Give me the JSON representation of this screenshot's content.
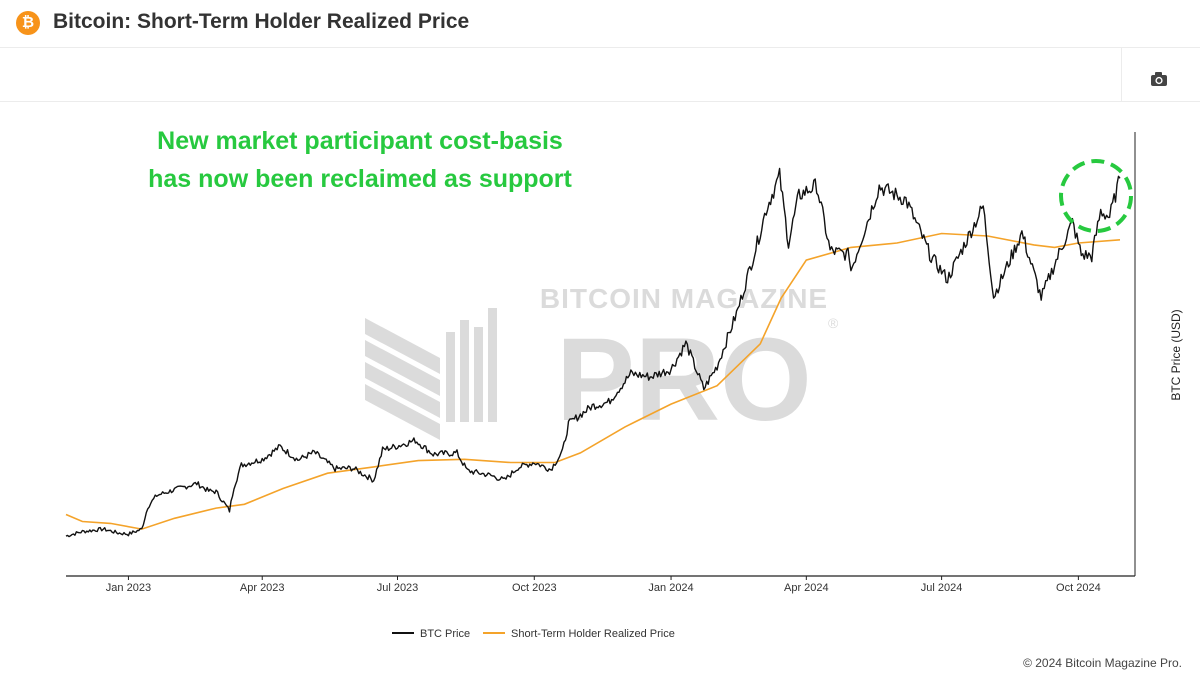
{
  "header": {
    "logo_glyph": "₿",
    "title": "Bitcoin: Short-Term Holder Realized Price"
  },
  "toolbar": {
    "camera_icon": "camera-icon"
  },
  "annotation": {
    "line1": "New market participant cost-basis",
    "line2": "has now been reclaimed as support",
    "color": "#27c93f"
  },
  "watermark": {
    "top": "BITCOIN MAGAZINE",
    "main": "PRO",
    "reg": "®"
  },
  "copyright": "© 2024 Bitcoin Magazine Pro.",
  "chart_data": {
    "type": "line",
    "title": "Bitcoin: Short-Term Holder Realized Price",
    "xlabel": "",
    "ylabel": "BTC Price (USD)",
    "x_ticks": [
      "Jan 2023",
      "Apr 2023",
      "Jul 2023",
      "Oct 2023",
      "Jan 2024",
      "Apr 2024",
      "Jul 2024",
      "Oct 2024"
    ],
    "x_range": [
      "2022-11-20",
      "2024-10-29"
    ],
    "ylim": [
      10000,
      80000
    ],
    "grid": false,
    "legend_position": "bottom",
    "series": [
      {
        "name": "BTC Price",
        "color": "#111111",
        "points": [
          [
            "2022-11-20",
            16300
          ],
          [
            "2022-12-01",
            17000
          ],
          [
            "2022-12-15",
            17400
          ],
          [
            "2022-12-25",
            16800
          ],
          [
            "2023-01-01",
            16600
          ],
          [
            "2023-01-10",
            17400
          ],
          [
            "2023-01-14",
            20900
          ],
          [
            "2023-01-20",
            22700
          ],
          [
            "2023-02-01",
            23600
          ],
          [
            "2023-02-16",
            24600
          ],
          [
            "2023-02-24",
            23400
          ],
          [
            "2023-03-01",
            23300
          ],
          [
            "2023-03-10",
            20300
          ],
          [
            "2023-03-13",
            24100
          ],
          [
            "2023-03-18",
            27500
          ],
          [
            "2023-04-01",
            28400
          ],
          [
            "2023-04-13",
            30400
          ],
          [
            "2023-04-25",
            28300
          ],
          [
            "2023-05-06",
            29500
          ],
          [
            "2023-05-20",
            26900
          ],
          [
            "2023-06-01",
            27000
          ],
          [
            "2023-06-15",
            25100
          ],
          [
            "2023-06-21",
            29900
          ],
          [
            "2023-07-01",
            30500
          ],
          [
            "2023-07-13",
            31400
          ],
          [
            "2023-07-25",
            29200
          ],
          [
            "2023-08-10",
            29400
          ],
          [
            "2023-08-17",
            26600
          ],
          [
            "2023-09-01",
            25900
          ],
          [
            "2023-09-11",
            25100
          ],
          [
            "2023-09-20",
            27100
          ],
          [
            "2023-10-01",
            27900
          ],
          [
            "2023-10-12",
            26800
          ],
          [
            "2023-10-20",
            29600
          ],
          [
            "2023-10-24",
            34000
          ],
          [
            "2023-11-09",
            36800
          ],
          [
            "2023-11-20",
            37400
          ],
          [
            "2023-12-05",
            41900
          ],
          [
            "2023-12-18",
            41400
          ],
          [
            "2024-01-01",
            42600
          ],
          [
            "2024-01-11",
            46700
          ],
          [
            "2024-01-23",
            39500
          ],
          [
            "2024-02-01",
            43100
          ],
          [
            "2024-02-15",
            52000
          ],
          [
            "2024-02-28",
            62500
          ],
          [
            "2024-03-05",
            67800
          ],
          [
            "2024-03-14",
            73100
          ],
          [
            "2024-03-20",
            62500
          ],
          [
            "2024-03-27",
            70000
          ],
          [
            "2024-04-08",
            71600
          ],
          [
            "2024-04-17",
            61300
          ],
          [
            "2024-04-30",
            60600
          ],
          [
            "2024-05-01",
            58200
          ],
          [
            "2024-05-20",
            71400
          ],
          [
            "2024-06-07",
            69300
          ],
          [
            "2024-06-24",
            60300
          ],
          [
            "2024-07-05",
            56800
          ],
          [
            "2024-07-29",
            68300
          ],
          [
            "2024-08-05",
            54000
          ],
          [
            "2024-08-24",
            64100
          ],
          [
            "2024-09-06",
            53900
          ],
          [
            "2024-09-17",
            60300
          ],
          [
            "2024-09-27",
            65800
          ],
          [
            "2024-10-03",
            60700
          ],
          [
            "2024-10-10",
            60400
          ],
          [
            "2024-10-16",
            67500
          ],
          [
            "2024-10-22",
            66600
          ],
          [
            "2024-10-29",
            72700
          ]
        ]
      },
      {
        "name": "Short-Term Holder Realized Price",
        "color": "#f4a32a",
        "points": [
          [
            "2022-11-20",
            19700
          ],
          [
            "2022-12-01",
            18600
          ],
          [
            "2022-12-20",
            18300
          ],
          [
            "2023-01-10",
            17400
          ],
          [
            "2023-02-01",
            19100
          ],
          [
            "2023-03-01",
            20700
          ],
          [
            "2023-03-20",
            21300
          ],
          [
            "2023-04-15",
            23800
          ],
          [
            "2023-05-15",
            26200
          ],
          [
            "2023-06-15",
            27200
          ],
          [
            "2023-07-15",
            28200
          ],
          [
            "2023-08-15",
            28400
          ],
          [
            "2023-09-15",
            27900
          ],
          [
            "2023-10-15",
            27900
          ],
          [
            "2023-11-01",
            29400
          ],
          [
            "2023-12-01",
            33500
          ],
          [
            "2024-01-01",
            37100
          ],
          [
            "2024-02-01",
            40000
          ],
          [
            "2024-03-01",
            46600
          ],
          [
            "2024-03-15",
            53800
          ],
          [
            "2024-04-01",
            59800
          ],
          [
            "2024-05-01",
            61800
          ],
          [
            "2024-06-01",
            62500
          ],
          [
            "2024-07-01",
            64000
          ],
          [
            "2024-08-01",
            63600
          ],
          [
            "2024-09-01",
            62200
          ],
          [
            "2024-09-15",
            61800
          ],
          [
            "2024-10-01",
            62500
          ],
          [
            "2024-10-29",
            63000
          ]
        ]
      }
    ]
  }
}
